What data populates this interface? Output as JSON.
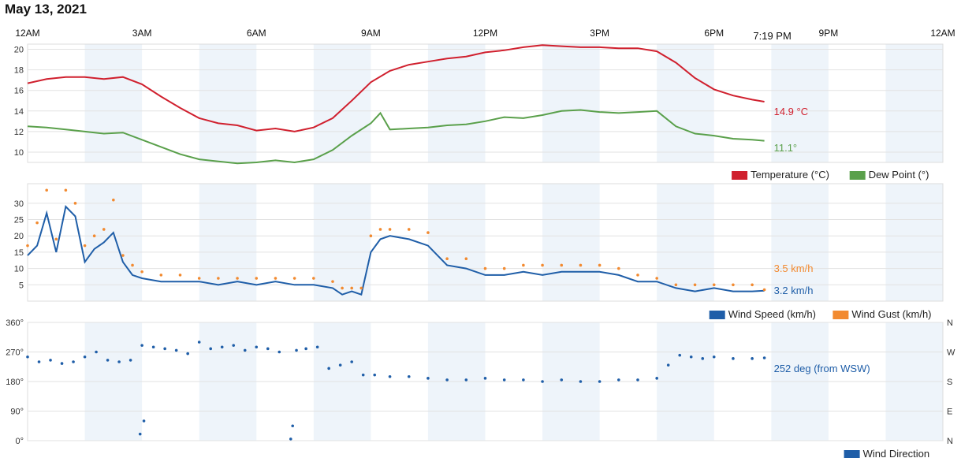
{
  "page": {
    "title": "May 13, 2021"
  },
  "colors": {
    "temperature": "#d0202e",
    "dew_point": "#5aa04b",
    "wind_speed": "#1f5ea8",
    "wind_gust": "#f28a30",
    "wind_direction": "#1f5ea8",
    "shade": "#eef4fa",
    "grid": "#e2e2e2"
  },
  "chart_data": [
    {
      "type": "line",
      "x_ticks": [
        "12AM",
        "3AM",
        "6AM",
        "9AM",
        "12PM",
        "3PM",
        "6PM",
        "9PM",
        "12AM"
      ],
      "current_time_label": "7:19 PM",
      "current_time_hours": 19.32,
      "ylim": [
        9,
        20.5
      ],
      "yticks": [
        10,
        12,
        14,
        16,
        18,
        20
      ],
      "series": [
        {
          "name": "Temperature (°C)",
          "end_label": "14.9 °C",
          "x": [
            0,
            0.5,
            1,
            1.5,
            2,
            2.5,
            3,
            3.5,
            4,
            4.5,
            5,
            5.5,
            6,
            6.5,
            7,
            7.5,
            8,
            8.5,
            9,
            9.5,
            10,
            10.5,
            11,
            11.5,
            12,
            12.5,
            13,
            13.5,
            14,
            14.5,
            15,
            15.5,
            16,
            16.5,
            17,
            17.5,
            18,
            18.5,
            19,
            19.32
          ],
          "values": [
            16.7,
            17.1,
            17.3,
            17.3,
            17.1,
            17.3,
            16.6,
            15.4,
            14.3,
            13.3,
            12.8,
            12.6,
            12.1,
            12.3,
            12.0,
            12.4,
            13.3,
            15.0,
            16.8,
            17.9,
            18.5,
            18.8,
            19.1,
            19.3,
            19.7,
            19.9,
            20.2,
            20.4,
            20.3,
            20.2,
            20.2,
            20.1,
            20.1,
            19.8,
            18.7,
            17.2,
            16.1,
            15.5,
            15.1,
            14.9
          ]
        },
        {
          "name": "Dew Point (°)",
          "end_label": "11.1°",
          "x": [
            0,
            0.5,
            1,
            1.5,
            2,
            2.5,
            3,
            3.5,
            4,
            4.5,
            5,
            5.5,
            6,
            6.5,
            7,
            7.5,
            8,
            8.5,
            9,
            9.25,
            9.5,
            10,
            10.5,
            11,
            11.5,
            12,
            12.5,
            13,
            13.5,
            14,
            14.5,
            15,
            15.5,
            16,
            16.5,
            17,
            17.5,
            18,
            18.5,
            19,
            19.32
          ],
          "values": [
            12.5,
            12.4,
            12.2,
            12.0,
            11.8,
            11.9,
            11.2,
            10.5,
            9.8,
            9.3,
            9.1,
            8.9,
            9.0,
            9.2,
            9.0,
            9.3,
            10.2,
            11.6,
            12.8,
            13.8,
            12.2,
            12.3,
            12.4,
            12.6,
            12.7,
            13.0,
            13.4,
            13.3,
            13.6,
            14.0,
            14.1,
            13.9,
            13.8,
            13.9,
            14.0,
            12.5,
            11.8,
            11.6,
            11.3,
            11.2,
            11.1
          ]
        }
      ],
      "legend": [
        "Temperature (°C)",
        "Dew Point (°)"
      ],
      "legend_position": "bottom-right"
    },
    {
      "type": "line",
      "x_ticks": [
        "12AM",
        "3AM",
        "6AM",
        "9AM",
        "12PM",
        "3PM",
        "6PM",
        "9PM",
        "12AM"
      ],
      "ylim": [
        0,
        36
      ],
      "yticks": [
        5,
        10,
        15,
        20,
        25,
        30
      ],
      "series": [
        {
          "name": "Wind Speed (km/h)",
          "style": "line",
          "end_label": "3.2 km/h",
          "x": [
            0,
            0.25,
            0.5,
            0.75,
            1,
            1.25,
            1.5,
            1.75,
            2,
            2.25,
            2.5,
            2.75,
            3,
            3.5,
            4,
            4.5,
            5,
            5.5,
            6,
            6.5,
            7,
            7.5,
            8,
            8.25,
            8.5,
            8.75,
            9,
            9.25,
            9.5,
            10,
            10.5,
            11,
            11.5,
            12,
            12.5,
            13,
            13.5,
            14,
            14.5,
            15,
            15.5,
            16,
            16.5,
            17,
            17.5,
            18,
            18.5,
            19,
            19.32
          ],
          "values": [
            14,
            17,
            27,
            15,
            29,
            26,
            12,
            16,
            18,
            21,
            12,
            8,
            7,
            6,
            6,
            6,
            5,
            6,
            5,
            6,
            5,
            5,
            4,
            2,
            3,
            2,
            15,
            19,
            20,
            19,
            17,
            11,
            10,
            8,
            8,
            9,
            8,
            9,
            9,
            9,
            8,
            6,
            6,
            4,
            3,
            4,
            3,
            3,
            3.2
          ]
        },
        {
          "name": "Wind Gust (km/h)",
          "style": "points",
          "end_label": "3.5 km/h",
          "x": [
            0,
            0.25,
            0.5,
            0.75,
            1,
            1.25,
            1.5,
            1.75,
            2,
            2.25,
            2.5,
            2.75,
            3,
            3.5,
            4,
            4.5,
            5,
            5.5,
            6,
            6.5,
            7,
            7.5,
            8,
            8.25,
            8.5,
            8.75,
            9,
            9.25,
            9.5,
            10,
            10.5,
            11,
            11.5,
            12,
            12.5,
            13,
            13.5,
            14,
            14.5,
            15,
            15.5,
            16,
            16.5,
            17,
            17.5,
            18,
            18.5,
            19,
            19.32
          ],
          "values": [
            17,
            24,
            34,
            19,
            34,
            30,
            17,
            20,
            22,
            31,
            14,
            11,
            9,
            8,
            8,
            7,
            7,
            7,
            7,
            7,
            7,
            7,
            6,
            4,
            4,
            4,
            20,
            22,
            22,
            22,
            21,
            13,
            13,
            10,
            10,
            11,
            11,
            11,
            11,
            11,
            10,
            8,
            7,
            5,
            5,
            5,
            5,
            5,
            3.5
          ]
        }
      ],
      "legend": [
        "Wind Speed (km/h)",
        "Wind Gust (km/h)"
      ],
      "legend_position": "bottom-right"
    },
    {
      "type": "scatter",
      "x_ticks": [
        "12AM",
        "3AM",
        "6AM",
        "9AM",
        "12PM",
        "3PM",
        "6PM",
        "9PM",
        "12AM"
      ],
      "ylim": [
        0,
        360
      ],
      "yticks": [
        0,
        90,
        180,
        270,
        360
      ],
      "ytick_labels": [
        "0°",
        "90°",
        "180°",
        "270°",
        "360°"
      ],
      "right_labels": [
        "N",
        "E",
        "S",
        "W",
        "N"
      ],
      "series": [
        {
          "name": "Wind Direction",
          "end_label": "252 deg (from WSW)",
          "x": [
            0,
            0.3,
            0.6,
            0.9,
            1.2,
            1.5,
            1.8,
            2.1,
            2.4,
            2.7,
            3.0,
            2.95,
            3.05,
            3.3,
            3.6,
            3.9,
            4.2,
            4.5,
            4.8,
            5.1,
            5.4,
            5.7,
            6.0,
            6.3,
            6.6,
            6.9,
            6.95,
            7.05,
            7.3,
            7.6,
            7.9,
            8.2,
            8.5,
            8.8,
            9.1,
            9.5,
            10,
            10.5,
            11,
            11.5,
            12,
            12.5,
            13,
            13.5,
            14,
            14.5,
            15,
            15.5,
            16,
            16.5,
            16.8,
            17.1,
            17.4,
            17.7,
            18,
            18.5,
            19,
            19.32
          ],
          "values": [
            255,
            240,
            245,
            235,
            240,
            255,
            270,
            245,
            240,
            245,
            290,
            20,
            60,
            285,
            280,
            275,
            265,
            300,
            280,
            285,
            290,
            275,
            285,
            280,
            270,
            5,
            45,
            275,
            280,
            285,
            220,
            230,
            240,
            200,
            200,
            195,
            195,
            190,
            185,
            185,
            190,
            185,
            185,
            180,
            185,
            180,
            180,
            185,
            185,
            190,
            230,
            260,
            255,
            250,
            255,
            250,
            250,
            252
          ]
        }
      ],
      "legend": [
        "Wind Direction"
      ],
      "legend_position": "bottom-right"
    }
  ]
}
